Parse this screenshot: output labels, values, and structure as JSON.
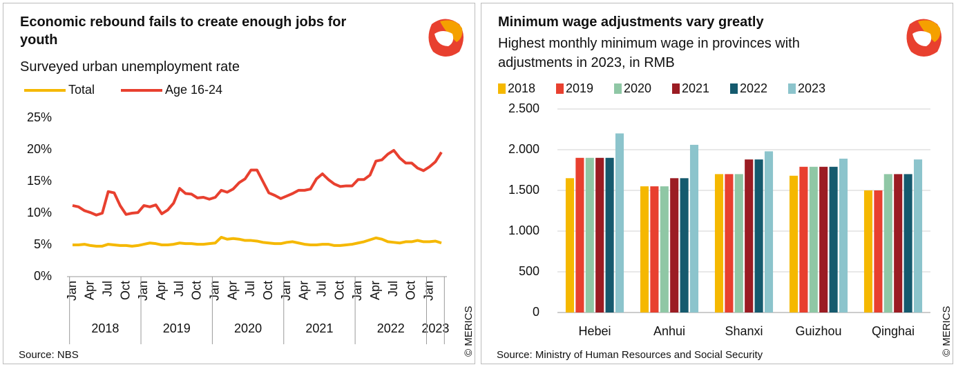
{
  "chart_data": [
    {
      "type": "line",
      "title": "Economic rebound fails to create enough jobs for youth",
      "subtitle": "Surveyed urban unemployment rate",
      "source": "Source: NBS",
      "credit": "© MERICS",
      "categories": [
        "Jan",
        null,
        null,
        "Apr",
        null,
        null,
        "Jul",
        null,
        null,
        "Oct",
        null,
        null,
        "Jan",
        null,
        null,
        "Apr",
        null,
        null,
        "Jul",
        null,
        null,
        "Oct",
        null,
        null,
        "Jan",
        null,
        null,
        "Apr",
        null,
        null,
        "Jul",
        null,
        null,
        "Oct",
        null,
        null,
        "Jan",
        null,
        null,
        "Apr",
        null,
        null,
        "Jul",
        null,
        null,
        "Oct",
        null,
        null,
        "Jan",
        null,
        null,
        "Apr",
        null,
        null,
        "Jul",
        null,
        null,
        "Oct",
        null,
        null,
        "Jan",
        null,
        null
      ],
      "category_groups": [
        "2018",
        "2019",
        "2020",
        "2021",
        "2022",
        "2023"
      ],
      "series": [
        {
          "name": "Total",
          "color": "#f5b800",
          "values": [
            5.0,
            5.0,
            5.1,
            4.9,
            4.8,
            4.8,
            5.1,
            5.0,
            4.9,
            4.9,
            4.8,
            4.9,
            5.1,
            5.3,
            5.2,
            5.0,
            5.0,
            5.1,
            5.3,
            5.2,
            5.2,
            5.1,
            5.1,
            5.2,
            5.3,
            6.2,
            5.9,
            6.0,
            5.9,
            5.7,
            5.7,
            5.6,
            5.4,
            5.3,
            5.2,
            5.2,
            5.4,
            5.5,
            5.3,
            5.1,
            5.0,
            5.0,
            5.1,
            5.1,
            4.9,
            4.9,
            5.0,
            5.1,
            5.3,
            5.5,
            5.8,
            6.1,
            5.9,
            5.5,
            5.4,
            5.3,
            5.5,
            5.5,
            5.7,
            5.5,
            5.5,
            5.6,
            5.3
          ]
        },
        {
          "name": "Age 16-24",
          "color": "#e8402f",
          "values": [
            11.2,
            11.0,
            10.4,
            10.1,
            9.7,
            10.0,
            13.4,
            13.2,
            11.2,
            9.8,
            10.0,
            10.1,
            11.2,
            11.0,
            11.3,
            9.9,
            10.5,
            11.6,
            13.9,
            13.1,
            13.0,
            12.4,
            12.5,
            12.2,
            12.5,
            13.6,
            13.3,
            13.8,
            14.8,
            15.4,
            16.8,
            16.8,
            15.0,
            13.2,
            12.8,
            12.3,
            12.7,
            13.1,
            13.6,
            13.6,
            13.8,
            15.4,
            16.2,
            15.3,
            14.6,
            14.2,
            14.3,
            14.3,
            15.3,
            15.3,
            16.0,
            18.2,
            18.4,
            19.3,
            19.9,
            18.7,
            17.9,
            17.9,
            17.1,
            16.7,
            17.3,
            18.1,
            19.6
          ]
        }
      ],
      "ylim": [
        0,
        25
      ],
      "yticks": [
        {
          "value": 0,
          "label": "0%"
        },
        {
          "value": 5,
          "label": "5%"
        },
        {
          "value": 10,
          "label": "10%"
        },
        {
          "value": 15,
          "label": "15%"
        },
        {
          "value": 20,
          "label": "20%"
        },
        {
          "value": 25,
          "label": "25%"
        }
      ],
      "grid": false
    },
    {
      "type": "bar",
      "title": "Minimum wage adjustments vary greatly",
      "subtitle": "Highest monthly minimum wage in provinces with adjustments in 2023, in RMB",
      "source": "Source: Ministry of Human Resources and Social Security",
      "credit": "© MERICS",
      "categories": [
        "Hebei",
        "Anhui",
        "Shanxi",
        "Guizhou",
        "Qinghai"
      ],
      "series": [
        {
          "name": "2018",
          "color": "#f5b800",
          "values": [
            1650,
            1550,
            1700,
            1680,
            1500
          ]
        },
        {
          "name": "2019",
          "color": "#e8402f",
          "values": [
            1900,
            1550,
            1700,
            1790,
            1500
          ]
        },
        {
          "name": "2020",
          "color": "#8fc7a5",
          "values": [
            1900,
            1550,
            1700,
            1790,
            1700
          ]
        },
        {
          "name": "2021",
          "color": "#9b1c23",
          "values": [
            1900,
            1650,
            1880,
            1790,
            1700
          ]
        },
        {
          "name": "2022",
          "color": "#155a6e",
          "values": [
            1900,
            1650,
            1880,
            1790,
            1700
          ]
        },
        {
          "name": "2023",
          "color": "#8cc4cc",
          "values": [
            2200,
            2060,
            1980,
            1890,
            1880
          ]
        }
      ],
      "ylim": [
        0,
        2500
      ],
      "yticks": [
        0,
        500,
        {
          "value": 1000,
          "label": "1.000"
        },
        {
          "value": 1500,
          "label": "1.500"
        },
        {
          "value": 2000,
          "label": "2.000"
        },
        {
          "value": 2500,
          "label": "2.500"
        }
      ],
      "grid": true
    }
  ]
}
